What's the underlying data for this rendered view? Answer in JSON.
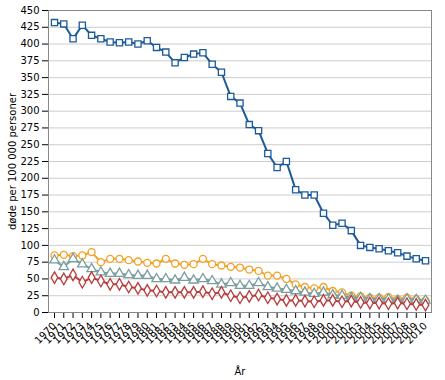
{
  "chart_data": {
    "type": "line",
    "x_label": "År",
    "y_label": "døde per 100 000 personer",
    "x": [
      1970,
      1971,
      1972,
      1973,
      1974,
      1975,
      1976,
      1977,
      1978,
      1979,
      1980,
      1981,
      1982,
      1983,
      1984,
      1985,
      1986,
      1987,
      1988,
      1989,
      1990,
      1991,
      1992,
      1993,
      1994,
      1995,
      1996,
      1997,
      1998,
      1999,
      2000,
      2001,
      2002,
      2003,
      2004,
      2005,
      2006,
      2007,
      2008,
      2009,
      2010
    ],
    "xlim": [
      1970,
      2010
    ],
    "xticks": [
      1970,
      1971,
      1972,
      1973,
      1974,
      1975,
      1976,
      1977,
      1978,
      1979,
      1980,
      1981,
      1982,
      1983,
      1984,
      1985,
      1986,
      1987,
      1988,
      1989,
      1990,
      1991,
      1992,
      1993,
      1994,
      1995,
      1996,
      1997,
      1998,
      1999,
      2000,
      2001,
      2002,
      2003,
      2004,
      2005,
      2006,
      2007,
      2008,
      2009,
      2010
    ],
    "ylim": [
      0,
      450
    ],
    "yticks": [
      0,
      25,
      50,
      75,
      100,
      125,
      150,
      175,
      200,
      225,
      250,
      275,
      300,
      325,
      350,
      375,
      400,
      425,
      450
    ],
    "grid": true,
    "series": [
      {
        "color": "#1c5a99",
        "marker": "square",
        "line_style": "solid",
        "values": [
          432,
          430,
          408,
          428,
          413,
          408,
          403,
          402,
          403,
          400,
          405,
          395,
          388,
          372,
          380,
          385,
          387,
          370,
          358,
          322,
          312,
          280,
          271,
          237,
          216,
          225,
          183,
          175,
          175,
          148,
          130,
          133,
          122,
          100,
          97,
          95,
          92,
          89,
          84,
          80,
          77
        ]
      },
      {
        "color": "#f5a020",
        "marker": "circle",
        "line_style": "solid",
        "values": [
          85,
          86,
          84,
          85,
          90,
          75,
          80,
          80,
          78,
          76,
          74,
          73,
          80,
          73,
          71,
          72,
          80,
          72,
          70,
          68,
          67,
          64,
          62,
          55,
          55,
          50,
          42,
          38,
          36,
          38,
          32,
          30,
          25,
          24,
          22,
          22,
          23,
          20,
          22,
          20,
          18
        ]
      },
      {
        "color": "#7a9e9f",
        "marker": "triangle",
        "line_style": "solid",
        "values": [
          78,
          68,
          80,
          72,
          65,
          60,
          58,
          58,
          56,
          55,
          55,
          50,
          50,
          48,
          52,
          48,
          50,
          47,
          42,
          44,
          40,
          40,
          44,
          38,
          36,
          34,
          32,
          30,
          28,
          30,
          26,
          25,
          22,
          22,
          20,
          20,
          20,
          18,
          20,
          19,
          18
        ]
      },
      {
        "color": "#b83c3c",
        "marker": "diamond",
        "line_style": "solid",
        "values": [
          52,
          50,
          56,
          45,
          52,
          47,
          42,
          42,
          38,
          36,
          33,
          32,
          30,
          30,
          30,
          30,
          31,
          28,
          30,
          25,
          22,
          24,
          26,
          22,
          20,
          18,
          18,
          17,
          16,
          18,
          18,
          16,
          17,
          15,
          14,
          14,
          13,
          14,
          13,
          12,
          11
        ]
      }
    ]
  }
}
